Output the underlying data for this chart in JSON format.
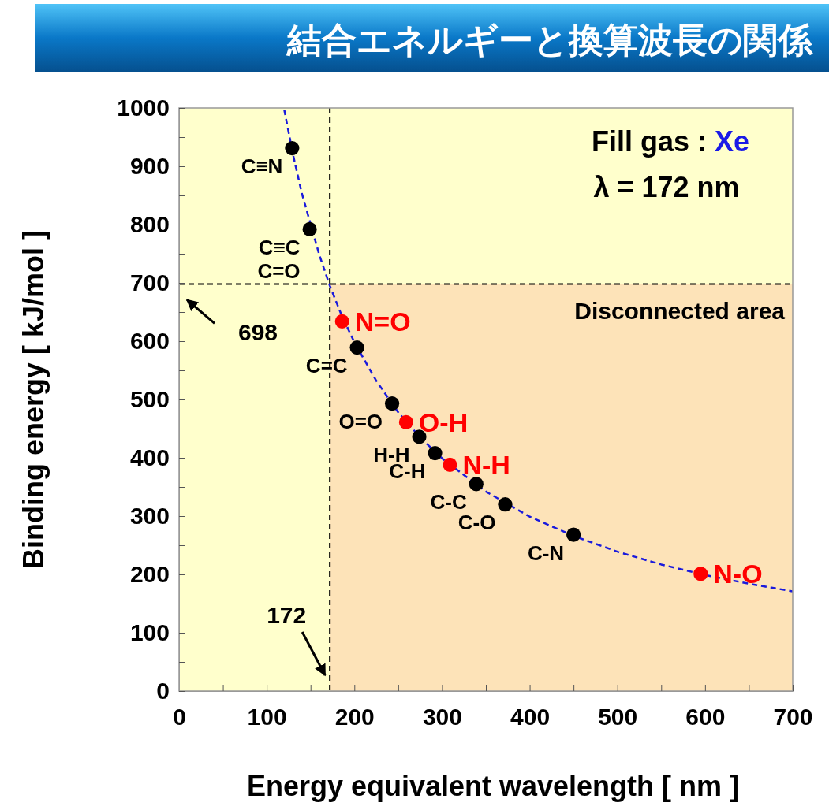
{
  "chart_data": {
    "type": "scatter",
    "title": "結合エネルギーと換算波長の関係",
    "xlabel": "Energy equivalent wavelength [ nm ]",
    "ylabel": "Binding energy [ kJ/mol ]",
    "xlim": [
      0,
      700
    ],
    "ylim": [
      0,
      1000
    ],
    "xticks": [
      0,
      {
        "value": 50,
        "label": null
      },
      100,
      {
        "value": 150,
        "label": null
      },
      200,
      {
        "value": 250,
        "label": null
      },
      300,
      {
        "value": 350,
        "label": null
      },
      400,
      {
        "value": 450,
        "label": null
      },
      500,
      {
        "value": 550,
        "label": null
      },
      600,
      {
        "value": 650,
        "label": null
      },
      700
    ],
    "yticks": [
      0,
      {
        "value": 50,
        "label": null
      },
      100,
      {
        "value": 150,
        "label": null
      },
      200,
      {
        "value": 250,
        "label": null
      },
      300,
      {
        "value": 350,
        "label": null
      },
      400,
      {
        "value": 450,
        "label": null
      },
      500,
      {
        "value": 550,
        "label": null
      },
      600,
      {
        "value": 650,
        "label": null
      },
      700,
      {
        "value": 750,
        "label": null
      },
      800,
      {
        "value": 850,
        "label": null
      },
      900,
      {
        "value": 950,
        "label": null
      },
      1000
    ],
    "marker": "circle",
    "series": [
      {
        "type": "line",
        "color": "#1a1adc",
        "line_style": "dashed",
        "marker": "none",
        "x": [
          120,
          130,
          140,
          160,
          172,
          185,
          200,
          225,
          250,
          275,
          300,
          350,
          400,
          450,
          500,
          550,
          600,
          650,
          700
        ],
        "values": [
          997,
          920,
          854,
          748,
          695,
          646,
          598,
          532,
          478,
          435,
          399,
          342,
          299,
          266,
          239,
          217,
          199,
          184,
          171
        ]
      },
      {
        "color": "#000000",
        "x": [
          129,
          149,
          203,
          243,
          274,
          292,
          339,
          372,
          450
        ],
        "values": [
          931,
          792,
          589,
          493,
          436,
          408,
          355,
          320,
          268
        ],
        "value_labels": [
          "C≡N",
          "C≡C\nC=O",
          "C=C",
          "O=O",
          "H-H",
          "C-H",
          "C-C",
          "C-O",
          "C-N"
        ]
      },
      {
        "color": "#ff0000",
        "x": [
          186,
          259,
          309,
          595
        ],
        "values": [
          634,
          461,
          388,
          201
        ],
        "value_labels": [
          "N=O",
          "O-H",
          "N-H",
          "N-O"
        ]
      }
    ],
    "bands": [
      {
        "axis": "x",
        "from": 0,
        "to": 172,
        "color": "#ffffcc"
      },
      {
        "axis": "x",
        "from": 172,
        "to": 700,
        "color": "#fde3b8",
        "label": "Disconnected area"
      },
      {
        "axis": "y",
        "from": 698,
        "to": 1000,
        "color": "#ffffcc"
      }
    ],
    "ref_lines": [
      {
        "axis": "x",
        "value": 172,
        "label": "172",
        "line_style": "dashed",
        "color": "#000000"
      },
      {
        "axis": "y",
        "value": 698,
        "label": "698",
        "line_style": "dashed",
        "color": "#000000"
      }
    ],
    "annotations": [
      "Fill gas : Xe",
      "λ = 172 nm"
    ]
  }
}
